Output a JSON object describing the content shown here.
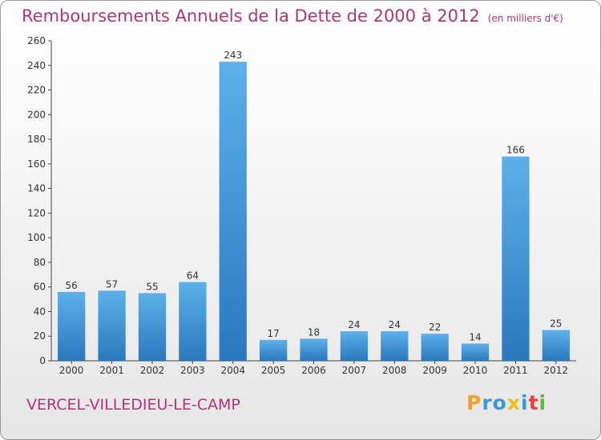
{
  "chart_data": {
    "type": "bar",
    "title": "Remboursements Annuels de la Dette de 2000 à 2012",
    "unit_label": "(en milliers d'€)",
    "categories": [
      "2000",
      "2001",
      "2002",
      "2003",
      "2004",
      "2005",
      "2006",
      "2007",
      "2008",
      "2009",
      "2010",
      "2011",
      "2012"
    ],
    "values": [
      56,
      57,
      55,
      64,
      243,
      17,
      18,
      24,
      24,
      22,
      14,
      166,
      25
    ],
    "xlabel": "",
    "ylabel": "",
    "ylim": [
      0,
      260
    ],
    "yticks": [
      0,
      20,
      40,
      60,
      80,
      100,
      120,
      140,
      160,
      180,
      200,
      220,
      240,
      260
    ],
    "grid": false,
    "bar_color": "#3f93d6"
  },
  "commune": "VERCEL-VILLEDIEU-LE-CAMP",
  "logo": {
    "letters": [
      "P",
      "r",
      "o",
      "x",
      "i",
      "t",
      "i"
    ],
    "colors": [
      "#f0a030",
      "#3a9ad9",
      "#3a9ad9",
      "#e8c020",
      "#3a9ad9",
      "#e84040",
      "#6ab04c"
    ]
  }
}
